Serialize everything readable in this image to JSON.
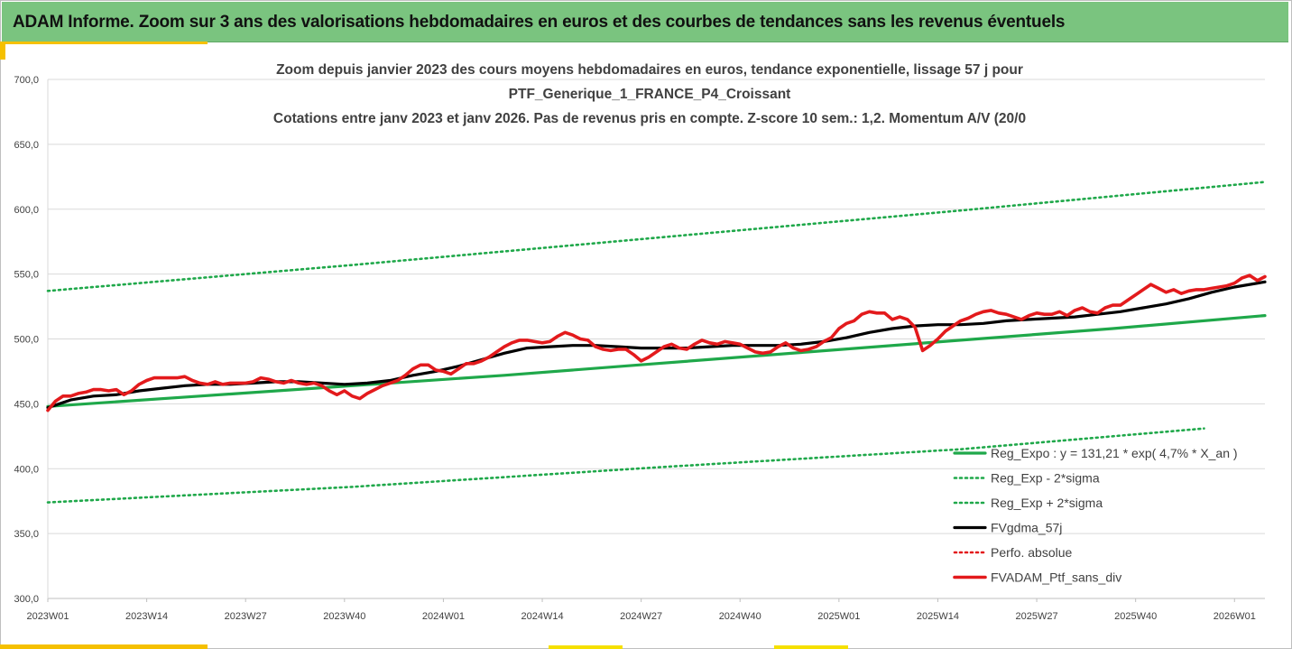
{
  "header": {
    "banner_title": "ADAM Informe. Zoom sur 3 ans des valorisations hebdomadaires en euros et des courbes de tendances sans les revenus éventuels"
  },
  "colors": {
    "banner_bg": "#7ac47f",
    "accent_yellow": "#f5c000",
    "trend_green": "#1fa84a",
    "band_green": "#1fa84a",
    "ma_black": "#000000",
    "perf_red": "#e31a1c"
  },
  "chart_data": {
    "type": "line",
    "title_lines": [
      "Zoom depuis janvier 2023 des cours moyens hebdomadaires  en euros, tendance exponentielle, lissage 57 j pour",
      "PTF_Generique_1_FRANCE_P4_Croissant",
      "Cotations  entre janv 2023 et janv 2026. Pas de revenus pris en compte. Z-score 10 sem.: 1,2. Momentum A/V (20/0"
    ],
    "ylim": [
      300,
      700
    ],
    "y_ticks": [
      "300,0",
      "350,0",
      "400,0",
      "450,0",
      "500,0",
      "550,0",
      "600,0",
      "650,0",
      "700,0"
    ],
    "x_ticks": [
      "2023W01",
      "2023W14",
      "2023W27",
      "2023W40",
      "2024W01",
      "2024W14",
      "2024W27",
      "2024W40",
      "2025W01",
      "2025W14",
      "2025W27",
      "2025W40",
      "2026W01"
    ],
    "x_range_weeks": [
      0,
      160
    ],
    "legend": [
      {
        "label": "Reg_Expo : y = 131,21 * exp( 4,7% *  X_an )",
        "style": "solid-green"
      },
      {
        "label": "Reg_Exp - 2*sigma",
        "style": "dotted-green"
      },
      {
        "label": "Reg_Exp + 2*sigma",
        "style": "dotted-green"
      },
      {
        "label": "FVgdma_57j",
        "style": "solid-black"
      },
      {
        "label": "Perfo. absolue",
        "style": "dotted-red"
      },
      {
        "label": "FVADAM_Ptf_sans_div",
        "style": "solid-red"
      }
    ],
    "series": [
      {
        "name": "Reg_Expo",
        "x": [
          0,
          20,
          40,
          60,
          80,
          100,
          120,
          140,
          160
        ],
        "values": [
          448,
          456,
          464,
          472,
          481,
          490,
          499,
          508,
          518
        ]
      },
      {
        "name": "Reg_Exp - 2*sigma",
        "x": [
          0,
          40,
          80,
          120,
          152
        ],
        "values": [
          374,
          386,
          401,
          415,
          431
        ]
      },
      {
        "name": "Reg_Exp + 2*sigma",
        "x": [
          0,
          40,
          80,
          120,
          160
        ],
        "values": [
          537,
          557,
          578,
          599,
          621
        ]
      },
      {
        "name": "FVgdma_57j",
        "x": [
          0,
          3,
          6,
          9,
          12,
          15,
          18,
          21,
          24,
          27,
          30,
          33,
          36,
          39,
          42,
          45,
          48,
          51,
          54,
          57,
          60,
          63,
          66,
          69,
          72,
          75,
          78,
          81,
          84,
          87,
          90,
          93,
          96,
          99,
          102,
          105,
          108,
          111,
          114,
          117,
          120,
          123,
          126,
          129,
          132,
          135,
          138,
          141,
          144,
          147,
          150,
          153,
          156,
          160
        ],
        "values": [
          447,
          453,
          456,
          457,
          460,
          462,
          464,
          465,
          465,
          466,
          467,
          467,
          466,
          465,
          466,
          468,
          472,
          475,
          479,
          484,
          489,
          493,
          494,
          495,
          495,
          494,
          493,
          493,
          493,
          494,
          495,
          495,
          495,
          496,
          498,
          501,
          505,
          508,
          510,
          511,
          511,
          512,
          514,
          515,
          516,
          517,
          519,
          521,
          524,
          527,
          531,
          536,
          540,
          544
        ]
      },
      {
        "name": "FVADAM_Ptf_sans_div",
        "x": [
          0,
          1,
          2,
          3,
          4,
          5,
          6,
          7,
          8,
          9,
          10,
          11,
          12,
          13,
          14,
          15,
          16,
          17,
          18,
          19,
          20,
          21,
          22,
          23,
          24,
          25,
          26,
          27,
          28,
          29,
          30,
          31,
          32,
          33,
          34,
          35,
          36,
          37,
          38,
          39,
          40,
          41,
          42,
          43,
          44,
          45,
          46,
          47,
          48,
          49,
          50,
          51,
          52,
          53,
          54,
          55,
          56,
          57,
          58,
          59,
          60,
          61,
          62,
          63,
          64,
          65,
          66,
          67,
          68,
          69,
          70,
          71,
          72,
          73,
          74,
          75,
          76,
          77,
          78,
          79,
          80,
          81,
          82,
          83,
          84,
          85,
          86,
          87,
          88,
          89,
          90,
          91,
          92,
          93,
          94,
          95,
          96,
          97,
          98,
          99,
          100,
          101,
          102,
          103,
          104,
          105,
          106,
          107,
          108,
          109,
          110,
          111,
          112,
          113,
          114,
          115,
          116,
          117,
          118,
          119,
          120,
          121,
          122,
          123,
          124,
          125,
          126,
          127,
          128,
          129,
          130,
          131,
          132,
          133,
          134,
          135,
          136,
          137,
          138,
          139,
          140,
          141,
          142,
          143,
          144,
          145,
          146,
          147,
          148,
          149,
          150,
          151,
          152,
          153,
          154,
          155,
          156,
          157,
          158,
          159,
          160
        ],
        "values": [
          445,
          452,
          456,
          456,
          458,
          459,
          461,
          461,
          460,
          461,
          457,
          460,
          465,
          468,
          470,
          470,
          470,
          470,
          471,
          468,
          466,
          465,
          467,
          465,
          466,
          466,
          466,
          467,
          470,
          469,
          467,
          466,
          468,
          466,
          465,
          466,
          464,
          460,
          457,
          460,
          456,
          454,
          458,
          461,
          464,
          466,
          468,
          472,
          477,
          480,
          480,
          476,
          475,
          473,
          477,
          481,
          481,
          483,
          486,
          490,
          494,
          497,
          499,
          499,
          498,
          497,
          498,
          502,
          505,
          503,
          500,
          499,
          494,
          492,
          491,
          492,
          492,
          488,
          483,
          486,
          490,
          494,
          496,
          493,
          492,
          496,
          499,
          497,
          496,
          498,
          497,
          496,
          493,
          490,
          489,
          490,
          494,
          497,
          493,
          491,
          492,
          494,
          498,
          501,
          508,
          512,
          514,
          519,
          521,
          520,
          520,
          515,
          517,
          515,
          509,
          491,
          495,
          500,
          506,
          510,
          514,
          516,
          519,
          521,
          522,
          520,
          519,
          517,
          515,
          518,
          520,
          519,
          519,
          521,
          518,
          522,
          524,
          521,
          520,
          524,
          526,
          526,
          530,
          534,
          538,
          542,
          539,
          536,
          538,
          535,
          537,
          538,
          538,
          539,
          540,
          541,
          543,
          547,
          549,
          545,
          548
        ]
      }
    ]
  }
}
